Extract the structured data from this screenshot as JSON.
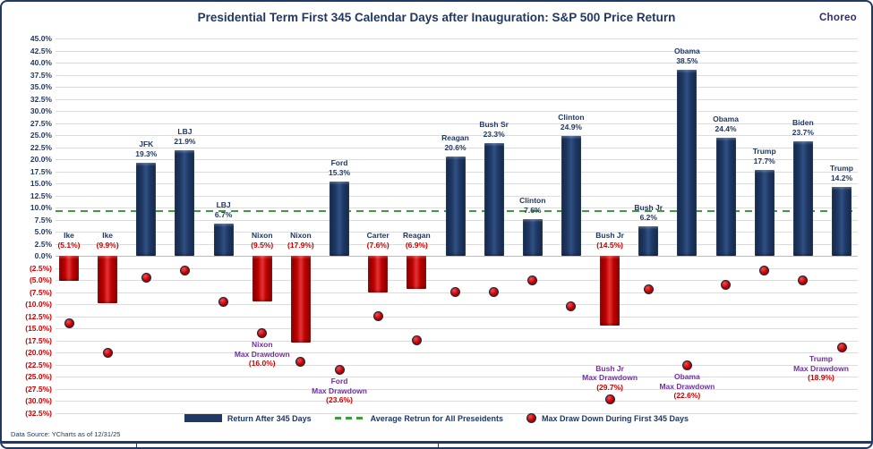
{
  "header": {
    "title": "Presidential Term First 345 Calendar Days after Inauguration: S&P 500 Price Return",
    "logo": "Choreo"
  },
  "footer": {
    "data_source": "Data Source: YCharts as of 12/31/25"
  },
  "legend": {
    "items": [
      {
        "icon": "bar-swatch-icon",
        "label": "Return After 345 Days"
      },
      {
        "icon": "dashed-line-icon",
        "label": "Average Retrun for All Preseidents"
      },
      {
        "icon": "dot-icon",
        "label": "Max Draw Down During First 345 Days"
      }
    ]
  },
  "colors": {
    "navy": "#1F3864",
    "red": "#C00000",
    "text_red": "#CC0000",
    "purple": "#7030A0",
    "green": "#3E9C3E",
    "grid": "#DCDCDC",
    "logo": "#2E2D75"
  },
  "chart_data": {
    "type": "bar",
    "title": "Presidential Term First 345 Calendar Days after Inauguration: S&P 500 Price Return",
    "xlabel": "",
    "ylabel": "",
    "ylim": [
      -32.5,
      45.0
    ],
    "ytick_step": 2.5,
    "grid": true,
    "legend_position": "bottom",
    "categories": [
      "Ike",
      "Ike",
      "JFK",
      "LBJ",
      "LBJ",
      "Nixon",
      "Nixon",
      "Ford",
      "Carter",
      "Reagan",
      "Reagan",
      "Bush Sr",
      "Clinton",
      "Clinton",
      "Bush Jr",
      "Bush Jr",
      "Obama",
      "Obama",
      "Trump",
      "Biden",
      "Trump"
    ],
    "series": [
      {
        "name": "Return After 345 Days",
        "type": "bar",
        "color_positive": "#1F3864",
        "color_negative": "#C00000",
        "values": [
          -5.1,
          -9.9,
          19.3,
          21.9,
          6.7,
          -9.5,
          -17.9,
          15.3,
          -7.6,
          -6.9,
          20.6,
          23.3,
          7.6,
          24.9,
          -14.5,
          6.2,
          38.5,
          24.4,
          17.7,
          23.7,
          14.2
        ],
        "labels": [
          "(5.1%)",
          "(9.9%)",
          "19.3%",
          "21.9%",
          "6.7%",
          "(9.5%)",
          "(17.9%)",
          "15.3%",
          "(7.6%)",
          "(6.9%)",
          "20.6%",
          "23.3%",
          "7.6%",
          "24.9%",
          "(14.5%)",
          "6.2%",
          "38.5%",
          "24.4%",
          "17.7%",
          "23.7%",
          "14.2%"
        ]
      },
      {
        "name": "Max Draw Down During First 345 Days",
        "type": "scatter",
        "color": "#C00000",
        "values": [
          -14.0,
          -20.0,
          -4.5,
          -3.0,
          -9.5,
          -16.0,
          -22.0,
          -23.6,
          -12.5,
          -17.5,
          -7.5,
          -7.5,
          -5.0,
          -10.5,
          -29.7,
          -7.0,
          -22.6,
          -6.0,
          -3.0,
          -5.0,
          -18.9
        ]
      }
    ],
    "average_line": {
      "name": "Average Retrun for All Preseidents",
      "value": 9.2,
      "style": "dashed",
      "color": "#3E9C3E"
    },
    "annotations": [
      {
        "index": 5,
        "lines": [
          "Nixon",
          "Max Drawdown"
        ],
        "value_label": "(16.0%)",
        "placement": "below"
      },
      {
        "index": 7,
        "lines": [
          "Ford",
          "Max Drawdown"
        ],
        "value_label": "(23.6%)",
        "placement": "below"
      },
      {
        "index": 14,
        "lines": [
          "Bush Jr",
          "Max Drawdown"
        ],
        "value_label": "(29.7%)",
        "placement": "above"
      },
      {
        "index": 16,
        "lines": [
          "Obama",
          "Max Drawdown"
        ],
        "value_label": "(22.6%)",
        "placement": "below"
      },
      {
        "index": 20,
        "lines": [
          "Trump",
          "Max Drawdown"
        ],
        "value_label": "(18.9%)",
        "placement": "below"
      }
    ]
  }
}
